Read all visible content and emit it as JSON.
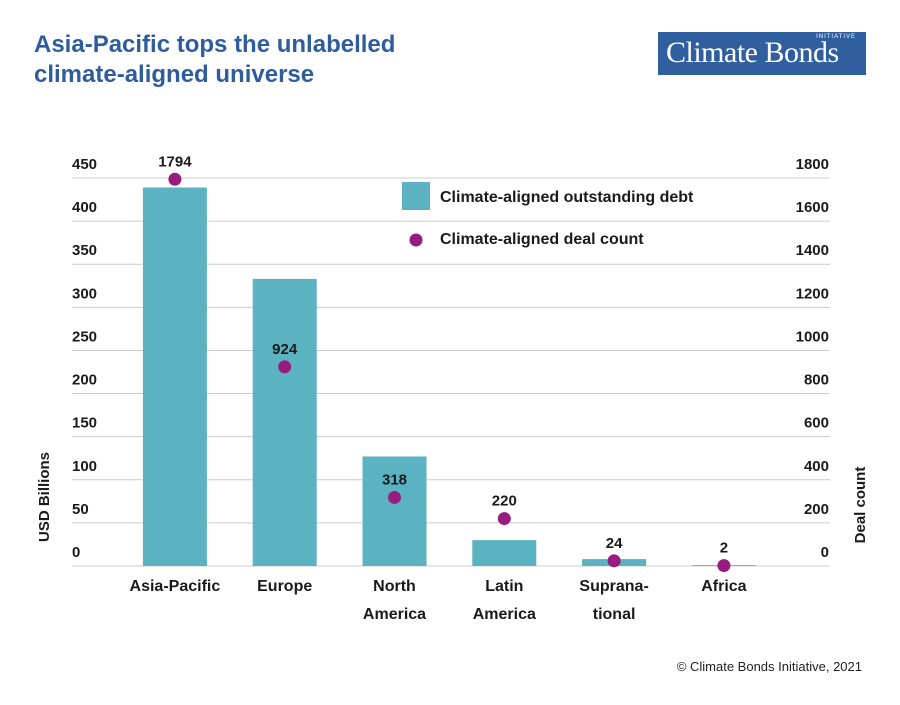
{
  "header": {
    "title_line1": "Asia-Pacific tops the unlabelled",
    "title_line2": "climate-aligned universe"
  },
  "logo": {
    "text": "Climate Bonds",
    "subtext": "INITIATIVE"
  },
  "footer": {
    "copyright": "© Climate Bonds Initiative, 2021"
  },
  "colors": {
    "bar": "#5bb3c1",
    "dot": "#981b80",
    "title": "#2e5d9e",
    "logo_bg": "#2f5f9e",
    "grid": "#cccccc"
  },
  "chart_data": {
    "type": "bar",
    "categories": [
      [
        "Asia-Pacific"
      ],
      [
        "Europe"
      ],
      [
        "North",
        "America"
      ],
      [
        "Latin",
        "America"
      ],
      [
        "Suprana-",
        "tional"
      ],
      [
        "Africa"
      ]
    ],
    "series": [
      {
        "name": "Climate-aligned outstanding debt",
        "type": "bar",
        "axis": "left",
        "values": [
          439,
          333,
          127,
          30,
          8,
          1
        ]
      },
      {
        "name": "Climate-aligned deal count",
        "type": "scatter",
        "axis": "right",
        "values": [
          1794,
          924,
          318,
          220,
          24,
          2
        ]
      }
    ],
    "ylabel_left": "USD Billions",
    "ylabel_right": "Deal count",
    "ylim_left": [
      0,
      450
    ],
    "ylim_right": [
      0,
      1800
    ],
    "yticks_left": [
      0,
      50,
      100,
      150,
      200,
      250,
      300,
      350,
      400,
      450
    ],
    "yticks_right": [
      0,
      200,
      400,
      600,
      800,
      1000,
      1200,
      1400,
      1600,
      1800
    ],
    "grid": true,
    "legend_position": "top-right"
  }
}
